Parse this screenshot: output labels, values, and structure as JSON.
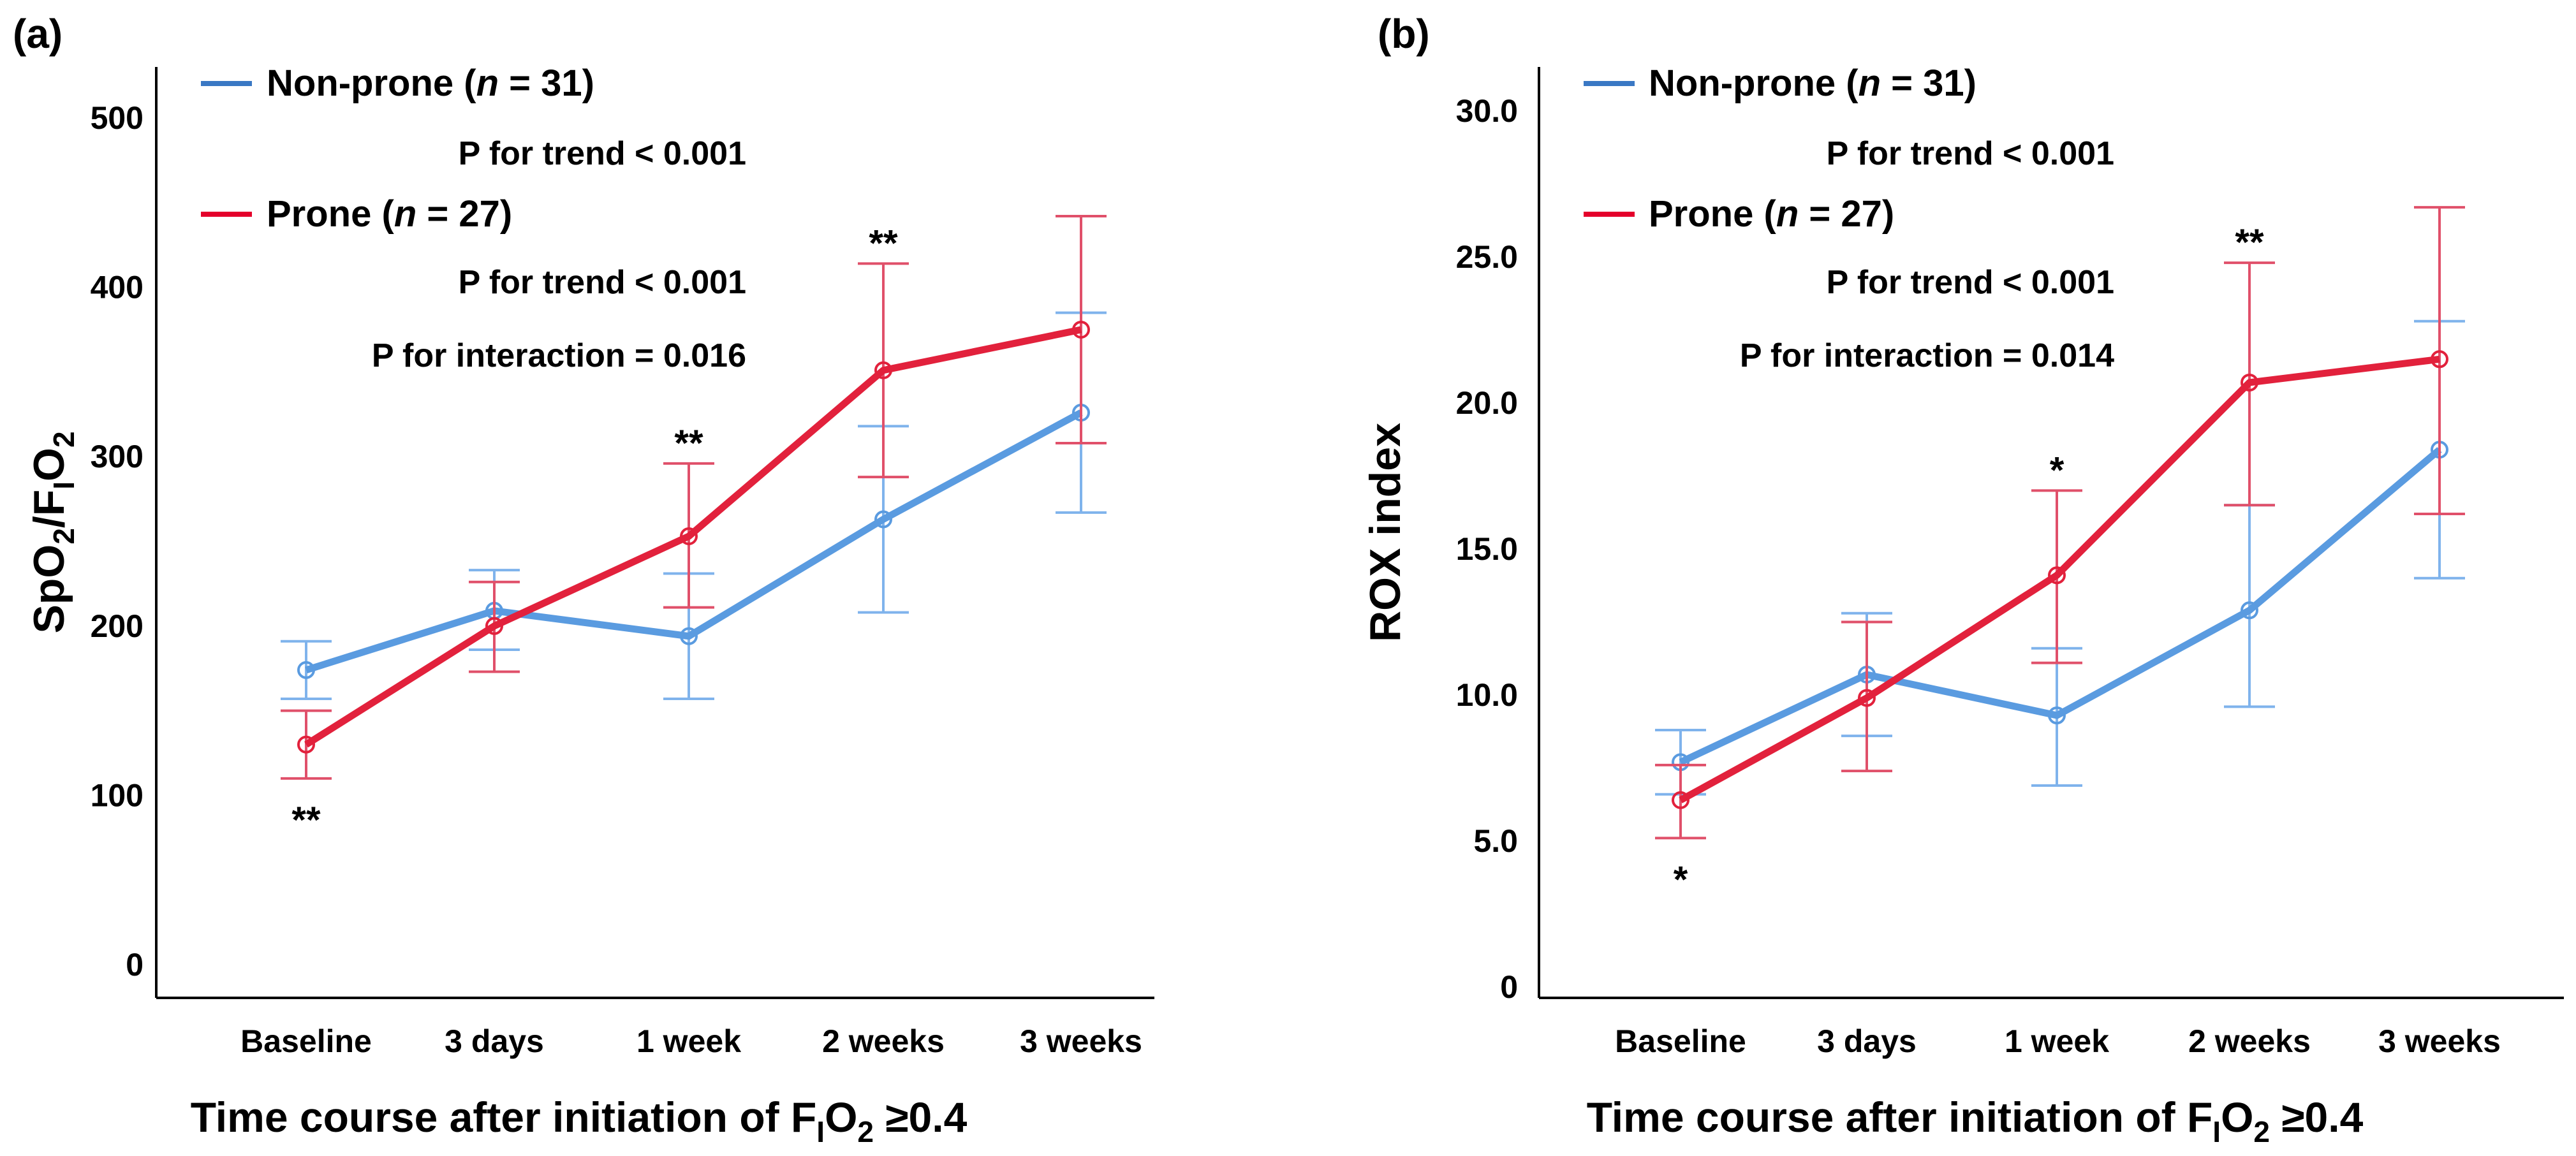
{
  "chart_data": [
    {
      "type": "line",
      "panel_label": "(a)",
      "categories": [
        "Baseline",
        "3 days",
        "1 week",
        "2 weeks",
        "3 weeks"
      ],
      "ylabel_parts": [
        "SpO",
        "2",
        "/F",
        "I",
        "O",
        "2"
      ],
      "xlabel_parts": [
        "Time course after initiation of F",
        "I",
        "O",
        "2",
        " ≥0.4"
      ],
      "ylim": [
        0,
        520
      ],
      "yticks": [
        0,
        100,
        200,
        300,
        400,
        500
      ],
      "ytick_labels": [
        "0",
        "100",
        "200",
        "300",
        "400",
        "500"
      ],
      "series": [
        {
          "name": "Non-prone",
          "n_label": "n",
          "n_value": "31",
          "color": "#5A9BE0",
          "values": [
            174,
            209,
            194,
            263,
            326
          ],
          "err_low": [
            157,
            186,
            157,
            208,
            267
          ],
          "err_high": [
            191,
            233,
            231,
            318,
            385
          ],
          "trend": "P for trend < 0.001"
        },
        {
          "name": "Prone",
          "n_label": "n",
          "n_value": "27",
          "color": "#E2213C",
          "values": [
            130,
            200,
            253,
            351,
            375
          ],
          "err_low": [
            110,
            173,
            211,
            288,
            308
          ],
          "err_high": [
            150,
            226,
            296,
            414,
            442
          ],
          "trend": "P for trend < 0.001"
        }
      ],
      "legend_colors": [
        "#3A78C4",
        "#E4002B"
      ],
      "interaction": "P for interaction = 0.016",
      "significance": [
        {
          "category_index": 0,
          "label": "**",
          "position": "below"
        },
        {
          "category_index": 2,
          "label": "**",
          "position": "above"
        },
        {
          "category_index": 3,
          "label": "**",
          "position": "above"
        }
      ]
    },
    {
      "type": "line",
      "panel_label": "(b)",
      "categories": [
        "Baseline",
        "3 days",
        "1 week",
        "2 weeks",
        "3 weeks"
      ],
      "ylabel": "ROX index",
      "xlabel_parts": [
        "Time course after initiation of F",
        "I",
        "O",
        "2",
        " ≥0.4"
      ],
      "ylim": [
        0,
        31.5
      ],
      "yticks": [
        0,
        5,
        10,
        15,
        20,
        25,
        30
      ],
      "ytick_labels": [
        "0",
        "5.0",
        "10.0",
        "15.0",
        "20.0",
        "25.0",
        "30.0"
      ],
      "series": [
        {
          "name": "Non-prone",
          "n_label": "n",
          "n_value": "31",
          "color": "#5A9BE0",
          "values": [
            7.7,
            10.7,
            9.3,
            12.9,
            18.4
          ],
          "err_low": [
            6.6,
            8.6,
            6.9,
            9.6,
            14.0
          ],
          "err_high": [
            8.8,
            12.8,
            11.6,
            16.5,
            22.8
          ],
          "trend": "P for trend < 0.001"
        },
        {
          "name": "Prone",
          "n_label": "n",
          "n_value": "27",
          "color": "#E2213C",
          "values": [
            6.4,
            9.9,
            14.1,
            20.7,
            21.5
          ],
          "err_low": [
            5.1,
            7.4,
            11.1,
            16.5,
            16.2
          ],
          "err_high": [
            7.6,
            12.5,
            17.0,
            24.8,
            26.7
          ],
          "trend": "P for trend < 0.001"
        }
      ],
      "legend_colors": [
        "#3A78C4",
        "#E4002B"
      ],
      "interaction": "P for interaction = 0.014",
      "significance": [
        {
          "category_index": 0,
          "label": "*",
          "position": "below"
        },
        {
          "category_index": 2,
          "label": "*",
          "position": "above"
        },
        {
          "category_index": 3,
          "label": "**",
          "position": "above"
        }
      ]
    }
  ]
}
